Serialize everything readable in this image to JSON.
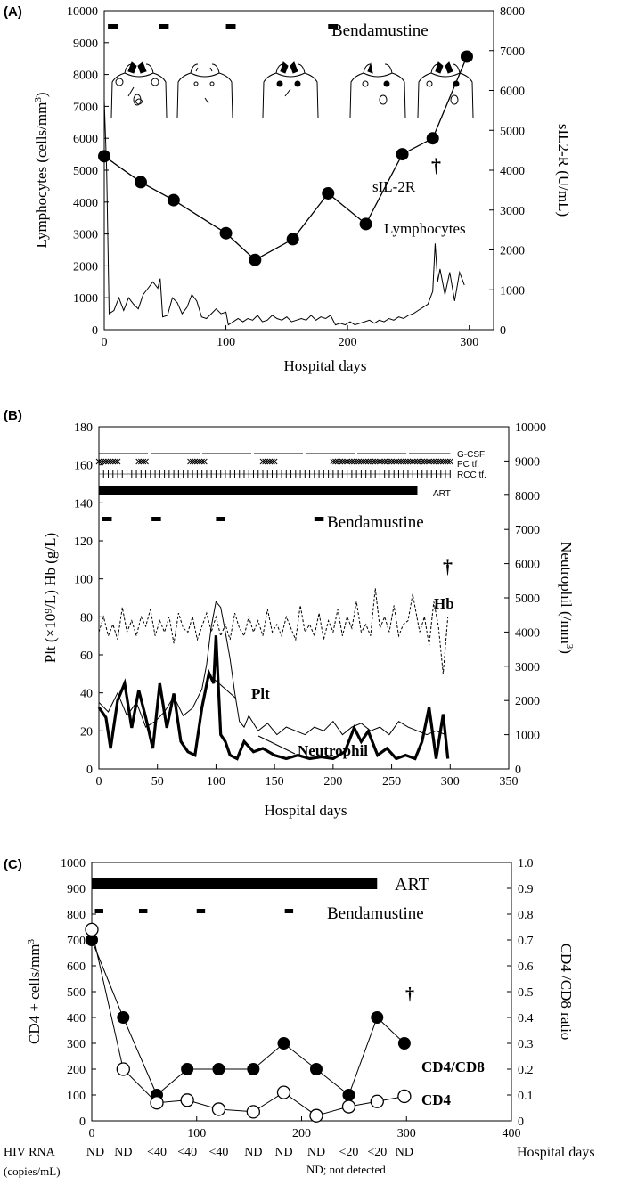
{
  "chart_data": [
    {
      "panel_label": "(A)",
      "type": "line",
      "xlabel": "Hospital days",
      "ylabel_left": "Lymphocytes (cells/mm3)",
      "ylabel_left_parts": [
        "Lymphocytes (cells/mm",
        "3",
        ")"
      ],
      "ylabel_right": "sIL2-R (U/mL)",
      "xlim": [
        0,
        320
      ],
      "ylim_left": [
        0,
        10000
      ],
      "ylim_right": [
        0,
        8000
      ],
      "xticks": [
        0,
        100,
        200,
        300
      ],
      "yticks_left": [
        0,
        1000,
        2000,
        3000,
        4000,
        5000,
        6000,
        7000,
        8000,
        9000,
        10000
      ],
      "yticks_right": [
        0,
        1000,
        2000,
        3000,
        4000,
        5000,
        6000,
        7000,
        8000
      ],
      "bendamustine_label": "Bendamustine",
      "bendamustine_days": [
        [
          3,
          11
        ],
        [
          45,
          53
        ],
        [
          100,
          108
        ],
        [
          184,
          192
        ]
      ],
      "dagger": "†",
      "dagger_day": 300,
      "series": [
        {
          "name": "sIL-2R",
          "axis": "right",
          "x": [
            0,
            30,
            57,
            100,
            124,
            155,
            184,
            215,
            245,
            270,
            298
          ],
          "y": [
            4350,
            3700,
            3250,
            2420,
            1750,
            2270,
            3420,
            2650,
            4400,
            4800,
            6850
          ]
        },
        {
          "name": "Lymphocytes",
          "axis": "left",
          "x": [
            0,
            2,
            4,
            8,
            12,
            16,
            20,
            24,
            28,
            32,
            36,
            40,
            44,
            46,
            48,
            52,
            56,
            60,
            64,
            68,
            72,
            76,
            80,
            84,
            88,
            92,
            96,
            100,
            102,
            106,
            110,
            114,
            118,
            122,
            126,
            130,
            134,
            138,
            142,
            146,
            150,
            154,
            158,
            162,
            166,
            170,
            174,
            178,
            182,
            186,
            190,
            194,
            198,
            202,
            206,
            210,
            214,
            218,
            222,
            226,
            230,
            234,
            238,
            242,
            246,
            250,
            254,
            258,
            262,
            266,
            270,
            272,
            274,
            276,
            280,
            284,
            288,
            292,
            296
          ],
          "y": [
            7200,
            5000,
            500,
            600,
            1000,
            600,
            1000,
            800,
            650,
            1100,
            1300,
            1500,
            1300,
            1600,
            400,
            450,
            1000,
            850,
            500,
            700,
            1100,
            900,
            400,
            350,
            500,
            650,
            500,
            550,
            150,
            250,
            350,
            250,
            350,
            300,
            450,
            250,
            300,
            450,
            350,
            300,
            400,
            250,
            300,
            350,
            300,
            450,
            300,
            400,
            350,
            450,
            150,
            200,
            150,
            250,
            150,
            200,
            250,
            300,
            200,
            300,
            250,
            350,
            300,
            400,
            350,
            450,
            500,
            600,
            700,
            800,
            1200,
            2700,
            1500,
            1900,
            1100,
            1800,
            900,
            1800,
            1400
          ]
        }
      ]
    },
    {
      "panel_label": "(B)",
      "type": "line",
      "xlabel": "Hospital days",
      "ylabel_left": "Plt (×10⁹/L) Hb (g/L)",
      "ylabel_right": "Neutrophil (/mm3)",
      "ylabel_right_parts": [
        "Neutrophil (/mm",
        "3",
        ")"
      ],
      "xlim": [
        0,
        350
      ],
      "ylim_left": [
        0,
        180
      ],
      "ylim_right": [
        0,
        10000
      ],
      "xticks": [
        0,
        50,
        100,
        150,
        200,
        250,
        300,
        350
      ],
      "yticks_left": [
        0,
        20,
        40,
        60,
        80,
        100,
        120,
        140,
        160,
        180
      ],
      "yticks_right": [
        0,
        1000,
        2000,
        3000,
        4000,
        5000,
        6000,
        7000,
        8000,
        9000,
        10000
      ],
      "treatment_rows": [
        "G-CSF",
        "PC tf.",
        "RCC tf."
      ],
      "art_label": "ART",
      "art_days": [
        0,
        272
      ],
      "bendamustine_label": "Bendamustine",
      "bendamustine_days": [
        [
          3,
          11
        ],
        [
          45,
          53
        ],
        [
          100,
          108
        ],
        [
          184,
          192
        ]
      ],
      "dagger": "†",
      "dagger_day": 300,
      "series_labels": [
        "Hb",
        "Plt",
        "Neutrophil"
      ],
      "series": [
        {
          "name": "Hb",
          "axis": "left",
          "x": [
            0,
            4,
            8,
            12,
            16,
            20,
            24,
            28,
            32,
            36,
            40,
            44,
            48,
            52,
            56,
            60,
            64,
            68,
            72,
            76,
            80,
            84,
            88,
            92,
            96,
            100,
            104,
            108,
            112,
            116,
            120,
            124,
            128,
            132,
            136,
            140,
            144,
            148,
            152,
            156,
            160,
            164,
            168,
            172,
            176,
            180,
            184,
            188,
            192,
            196,
            200,
            204,
            208,
            212,
            216,
            220,
            224,
            228,
            232,
            236,
            240,
            244,
            248,
            252,
            256,
            260,
            264,
            268,
            270,
            274,
            278,
            282,
            286,
            290,
            294,
            298
          ],
          "y": [
            72,
            80,
            70,
            76,
            68,
            85,
            72,
            78,
            70,
            80,
            75,
            84,
            70,
            78,
            72,
            80,
            66,
            82,
            74,
            72,
            80,
            68,
            75,
            82,
            72,
            80,
            70,
            76,
            68,
            82,
            74,
            70,
            80,
            72,
            78,
            70,
            84,
            72,
            76,
            70,
            80,
            74,
            68,
            86,
            72,
            76,
            70,
            82,
            68,
            78,
            72,
            84,
            70,
            80,
            74,
            88,
            72,
            76,
            70,
            95,
            74,
            80,
            72,
            86,
            70,
            76,
            78,
            92,
            85,
            72,
            80,
            65,
            88,
            75,
            50,
            80
          ]
        },
        {
          "name": "Plt",
          "axis": "left",
          "x": [
            0,
            8,
            16,
            24,
            32,
            40,
            48,
            56,
            64,
            72,
            80,
            88,
            92,
            96,
            100,
            104,
            108,
            112,
            116,
            120,
            124,
            128,
            136,
            144,
            152,
            160,
            168,
            176,
            184,
            192,
            200,
            208,
            216,
            224,
            232,
            240,
            248,
            256,
            264,
            272,
            280,
            288,
            296
          ],
          "y": [
            35,
            30,
            40,
            28,
            35,
            22,
            25,
            30,
            38,
            28,
            32,
            42,
            55,
            75,
            88,
            85,
            72,
            58,
            40,
            25,
            22,
            28,
            20,
            24,
            18,
            22,
            20,
            18,
            22,
            20,
            25,
            18,
            22,
            24,
            20,
            22,
            18,
            25,
            22,
            20,
            18,
            20,
            18
          ]
        },
        {
          "name": "Neutrophil",
          "axis": "right",
          "x": [
            0,
            6,
            10,
            16,
            22,
            28,
            34,
            40,
            46,
            52,
            58,
            64,
            70,
            76,
            82,
            88,
            94,
            98,
            100,
            104,
            108,
            112,
            118,
            124,
            132,
            140,
            150,
            160,
            170,
            180,
            190,
            200,
            210,
            218,
            224,
            230,
            238,
            246,
            254,
            262,
            270,
            276,
            282,
            288,
            294,
            298
          ],
          "y": [
            1800,
            1500,
            600,
            2000,
            2500,
            1200,
            2300,
            1500,
            600,
            2500,
            1200,
            2200,
            800,
            500,
            400,
            1800,
            2800,
            2500,
            3900,
            1000,
            800,
            400,
            300,
            800,
            500,
            600,
            400,
            300,
            400,
            300,
            350,
            300,
            500,
            1200,
            800,
            1100,
            400,
            600,
            300,
            400,
            300,
            800,
            1800,
            300,
            1600,
            300
          ]
        }
      ]
    },
    {
      "panel_label": "(C)",
      "type": "line",
      "xlabel": "Hospital days",
      "ylabel_left": "CD4 + cells/mm3",
      "ylabel_left_parts": [
        "CD4 + cells/mm",
        "3",
        ""
      ],
      "ylabel_right": "CD4 /CD8  ratio",
      "xlim": [
        0,
        400
      ],
      "ylim_left": [
        0,
        1000
      ],
      "ylim_right": [
        0,
        1.0
      ],
      "xticks": [
        0,
        100,
        200,
        300,
        400
      ],
      "yticks_left": [
        0,
        100,
        200,
        300,
        400,
        500,
        600,
        700,
        800,
        900,
        1000
      ],
      "yticks_right": [
        "0",
        "0.1",
        "0.2",
        "0.3",
        "0.4",
        "0.5",
        "0.6",
        "0.7",
        "0.8",
        "0.9",
        "1.0"
      ],
      "art_label": "ART",
      "art_days": [
        0,
        272
      ],
      "bendamustine_label": "Bendamustine",
      "bendamustine_days": [
        [
          3,
          11
        ],
        [
          45,
          53
        ],
        [
          100,
          108
        ],
        [
          184,
          192
        ]
      ],
      "dagger": "†",
      "dagger_day": 300,
      "series": [
        {
          "name": "CD4/CD8",
          "axis": "right",
          "marker": "filled-circle",
          "x": [
            0,
            30,
            62,
            91,
            121,
            154,
            183,
            214,
            245,
            272,
            298
          ],
          "y": [
            0.7,
            0.4,
            0.1,
            0.2,
            0.2,
            0.2,
            0.3,
            0.2,
            0.1,
            0.4,
            0.3
          ]
        },
        {
          "name": "CD4",
          "axis": "left",
          "marker": "open-circle",
          "x": [
            0,
            30,
            62,
            91,
            121,
            154,
            183,
            214,
            245,
            272,
            298
          ],
          "y": [
            740,
            200,
            70,
            80,
            45,
            35,
            110,
            20,
            55,
            75,
            95
          ]
        }
      ],
      "hiv_rna": {
        "label_line1": "HIV RNA",
        "label_line2": "(copies/mL)",
        "values": [
          "ND",
          "ND",
          "<40",
          "<40",
          "<40",
          "ND",
          "ND",
          "ND",
          "<20",
          "<20",
          "ND"
        ],
        "footnote": "ND; not detected"
      }
    }
  ]
}
